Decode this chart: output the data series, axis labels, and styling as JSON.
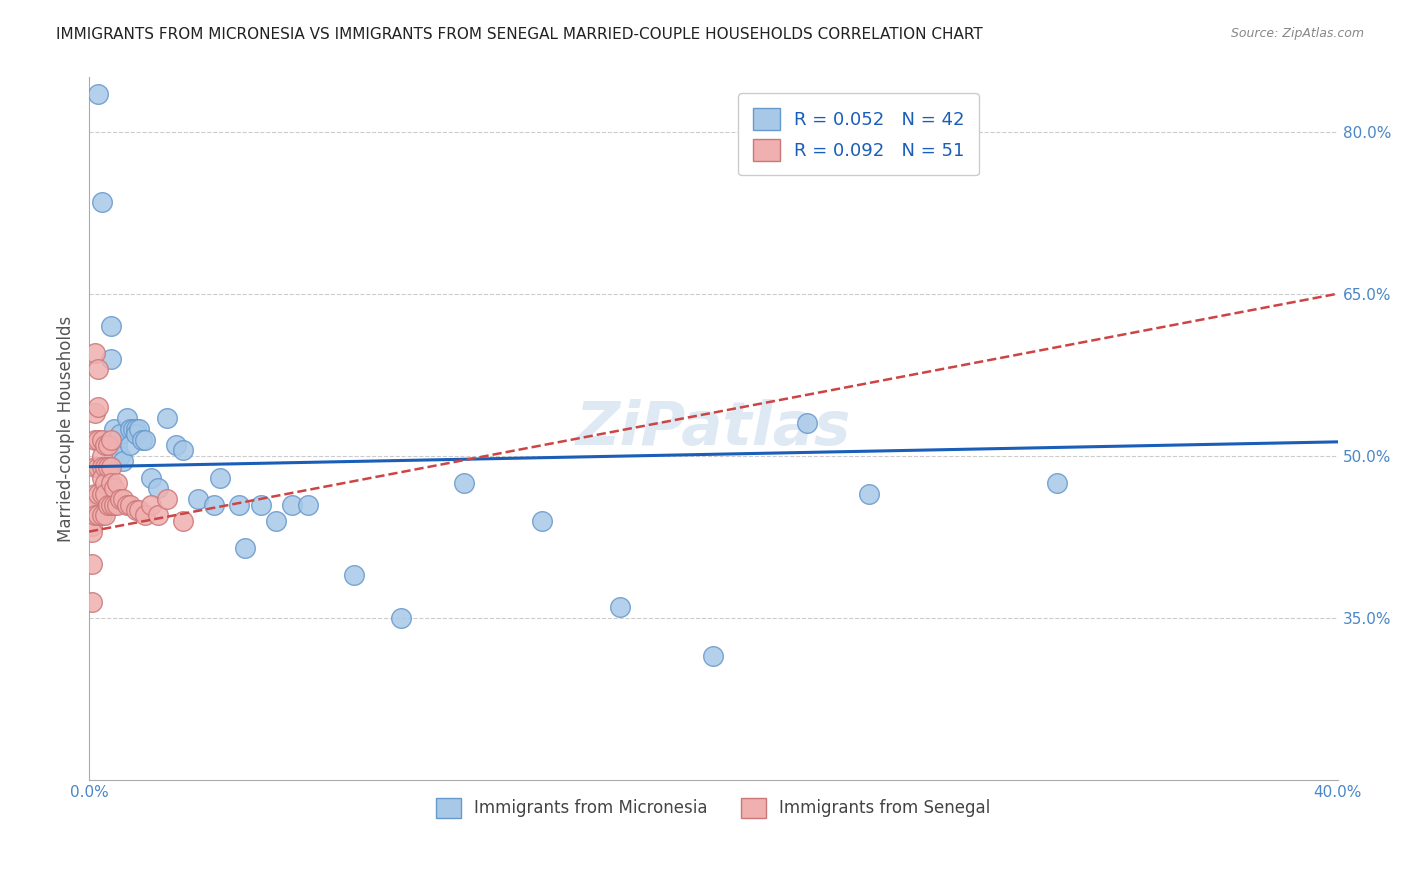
{
  "title": "IMMIGRANTS FROM MICRONESIA VS IMMIGRANTS FROM SENEGAL MARRIED-COUPLE HOUSEHOLDS CORRELATION CHART",
  "source": "Source: ZipAtlas.com",
  "xlabel_bottom": [
    "Immigrants from Micronesia",
    "Immigrants from Senegal"
  ],
  "ylabel": "Married-couple Households",
  "xlim": [
    0.0,
    0.4
  ],
  "ylim": [
    0.2,
    0.85
  ],
  "xticks": [
    0.0,
    0.1,
    0.2,
    0.3,
    0.4
  ],
  "yticks": [
    0.35,
    0.5,
    0.65,
    0.8
  ],
  "ytick_labels": [
    "35.0%",
    "50.0%",
    "65.0%",
    "80.0%"
  ],
  "xtick_labels": [
    "0.0%",
    "",
    "",
    "",
    "40.0%"
  ],
  "legend_R_blue": "R = 0.052",
  "legend_N_blue": "N = 42",
  "legend_R_pink": "R = 0.092",
  "legend_N_pink": "N = 51",
  "blue_color": "#a8c8e8",
  "pink_color": "#f0b0b0",
  "blue_edge_color": "#6699cc",
  "pink_edge_color": "#cc7777",
  "blue_line_color": "#1a5eb8",
  "pink_line_color": "#cc4444",
  "grid_color": "#cccccc",
  "axis_label_color": "#4a86c8",
  "title_color": "#222222",
  "watermark": "ZiPatlas",
  "blue_scatter_x": [
    0.003,
    0.004,
    0.007,
    0.007,
    0.008,
    0.008,
    0.009,
    0.01,
    0.01,
    0.011,
    0.012,
    0.013,
    0.013,
    0.014,
    0.015,
    0.015,
    0.016,
    0.017,
    0.018,
    0.02,
    0.022,
    0.025,
    0.028,
    0.03,
    0.035,
    0.04,
    0.042,
    0.048,
    0.05,
    0.055,
    0.06,
    0.065,
    0.07,
    0.085,
    0.1,
    0.12,
    0.145,
    0.17,
    0.2,
    0.23,
    0.25,
    0.31
  ],
  "blue_scatter_y": [
    0.835,
    0.735,
    0.62,
    0.59,
    0.525,
    0.5,
    0.51,
    0.52,
    0.5,
    0.495,
    0.535,
    0.525,
    0.51,
    0.525,
    0.525,
    0.52,
    0.525,
    0.515,
    0.515,
    0.48,
    0.47,
    0.535,
    0.51,
    0.505,
    0.46,
    0.455,
    0.48,
    0.455,
    0.415,
    0.455,
    0.44,
    0.455,
    0.455,
    0.39,
    0.35,
    0.475,
    0.44,
    0.36,
    0.315,
    0.53,
    0.465,
    0.475
  ],
  "pink_scatter_x": [
    0.001,
    0.001,
    0.001,
    0.001,
    0.001,
    0.002,
    0.002,
    0.002,
    0.002,
    0.002,
    0.002,
    0.002,
    0.003,
    0.003,
    0.003,
    0.003,
    0.003,
    0.003,
    0.004,
    0.004,
    0.004,
    0.004,
    0.004,
    0.004,
    0.005,
    0.005,
    0.005,
    0.005,
    0.005,
    0.006,
    0.006,
    0.006,
    0.007,
    0.007,
    0.007,
    0.007,
    0.008,
    0.008,
    0.009,
    0.009,
    0.01,
    0.011,
    0.012,
    0.013,
    0.015,
    0.016,
    0.018,
    0.02,
    0.022,
    0.025,
    0.03
  ],
  "pink_scatter_y": [
    0.455,
    0.435,
    0.43,
    0.4,
    0.365,
    0.595,
    0.54,
    0.515,
    0.49,
    0.465,
    0.455,
    0.445,
    0.58,
    0.545,
    0.515,
    0.49,
    0.465,
    0.445,
    0.515,
    0.5,
    0.49,
    0.48,
    0.465,
    0.445,
    0.51,
    0.49,
    0.475,
    0.465,
    0.445,
    0.51,
    0.49,
    0.455,
    0.515,
    0.49,
    0.475,
    0.455,
    0.47,
    0.455,
    0.475,
    0.455,
    0.46,
    0.46,
    0.455,
    0.455,
    0.45,
    0.45,
    0.445,
    0.455,
    0.445,
    0.46,
    0.44
  ],
  "blue_trend_x": [
    0.0,
    0.4
  ],
  "blue_trend_y": [
    0.49,
    0.513
  ],
  "pink_trend_x": [
    0.0,
    0.4
  ],
  "pink_trend_y": [
    0.43,
    0.65
  ]
}
